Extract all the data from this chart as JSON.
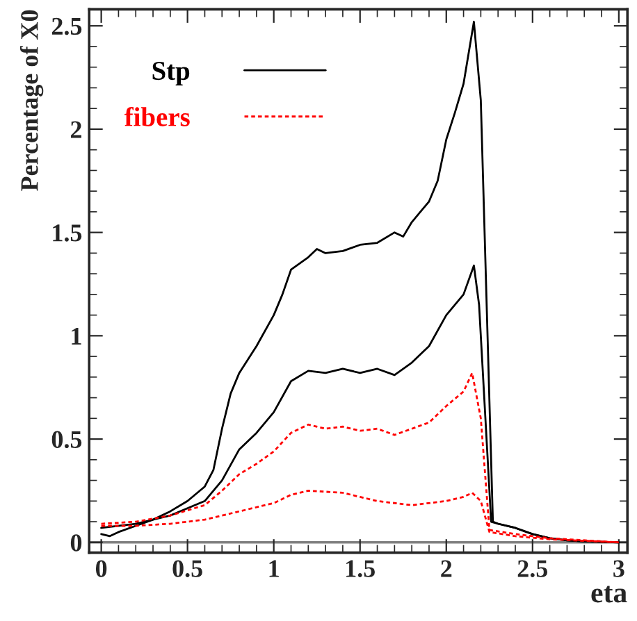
{
  "chart_data": {
    "type": "line",
    "xlabel": "eta",
    "ylabel": "Percentage of X0",
    "xlim": [
      -0.07,
      3.05
    ],
    "ylim": [
      -0.05,
      2.58
    ],
    "xticks": [
      {
        "value": 0,
        "label": "0"
      },
      0.5,
      {
        "value": 1,
        "label": "1"
      },
      1.5,
      {
        "value": 2,
        "label": "2"
      },
      2.5,
      {
        "value": 3,
        "label": "3"
      }
    ],
    "yticks": [
      {
        "value": 0,
        "label": "0"
      },
      0.5,
      {
        "value": 1,
        "label": "1"
      },
      1.5,
      {
        "value": 2,
        "label": "2"
      },
      2.5
    ],
    "grid": false,
    "legend": "top left",
    "marker": "none",
    "ref_lines": [
      {
        "axis": "y",
        "value": 0,
        "color": "#808080"
      }
    ],
    "series": [
      {
        "name": "Stp",
        "color": "#000000",
        "line_style": "solid",
        "x": [
          0,
          0.05,
          0.1,
          0.2,
          0.3,
          0.4,
          0.5,
          0.6,
          0.65,
          0.7,
          0.75,
          0.8,
          0.9,
          1.0,
          1.05,
          1.1,
          1.2,
          1.25,
          1.3,
          1.4,
          1.5,
          1.6,
          1.7,
          1.75,
          1.8,
          1.85,
          1.9,
          1.95,
          2.0,
          2.05,
          2.1,
          2.16,
          2.2,
          2.27,
          2.3,
          2.4,
          2.5,
          2.6,
          2.7,
          2.8,
          3.0
        ],
        "values": [
          0.04,
          0.03,
          0.05,
          0.08,
          0.11,
          0.15,
          0.2,
          0.27,
          0.35,
          0.55,
          0.72,
          0.82,
          0.95,
          1.1,
          1.2,
          1.32,
          1.38,
          1.42,
          1.4,
          1.41,
          1.44,
          1.45,
          1.5,
          1.48,
          1.55,
          1.6,
          1.65,
          1.75,
          1.95,
          2.08,
          2.22,
          2.52,
          2.14,
          0.1,
          0.09,
          0.07,
          0.04,
          0.02,
          0.01,
          0.005,
          0
        ]
      },
      {
        "color": "#000000",
        "line_style": "solid",
        "x": [
          0,
          0.2,
          0.4,
          0.6,
          0.7,
          0.8,
          0.9,
          1.0,
          1.1,
          1.2,
          1.3,
          1.4,
          1.5,
          1.6,
          1.7,
          1.8,
          1.9,
          2.0,
          2.1,
          2.16,
          2.19,
          2.26,
          2.3,
          2.4,
          2.5,
          2.6,
          2.7,
          2.8,
          3.0
        ],
        "values": [
          0.07,
          0.09,
          0.13,
          0.2,
          0.3,
          0.45,
          0.53,
          0.63,
          0.78,
          0.83,
          0.82,
          0.84,
          0.82,
          0.84,
          0.81,
          0.87,
          0.95,
          1.1,
          1.2,
          1.34,
          1.15,
          0.1,
          0.09,
          0.07,
          0.04,
          0.02,
          0.01,
          0.005,
          0
        ]
      },
      {
        "name": "fibers",
        "color": "#ff0000",
        "line_style": "dashed",
        "x": [
          0,
          0.2,
          0.4,
          0.6,
          0.7,
          0.8,
          0.9,
          1.0,
          1.1,
          1.2,
          1.3,
          1.4,
          1.5,
          1.6,
          1.7,
          1.8,
          1.9,
          2.0,
          2.1,
          2.15,
          2.2,
          2.25,
          2.4,
          2.6,
          3.0
        ],
        "values": [
          0.09,
          0.1,
          0.13,
          0.18,
          0.25,
          0.33,
          0.38,
          0.44,
          0.53,
          0.57,
          0.55,
          0.56,
          0.54,
          0.55,
          0.52,
          0.55,
          0.58,
          0.66,
          0.73,
          0.82,
          0.6,
          0.06,
          0.04,
          0.02,
          0
        ]
      },
      {
        "color": "#ff0000",
        "line_style": "dashed",
        "x": [
          0,
          0.2,
          0.4,
          0.6,
          0.8,
          1.0,
          1.1,
          1.2,
          1.4,
          1.5,
          1.6,
          1.8,
          2.0,
          2.1,
          2.15,
          2.2,
          2.25,
          2.4,
          2.6,
          3.0
        ],
        "values": [
          0.08,
          0.08,
          0.09,
          0.11,
          0.15,
          0.19,
          0.23,
          0.25,
          0.24,
          0.22,
          0.2,
          0.18,
          0.2,
          0.22,
          0.24,
          0.2,
          0.05,
          0.03,
          0.015,
          0
        ]
      }
    ]
  }
}
